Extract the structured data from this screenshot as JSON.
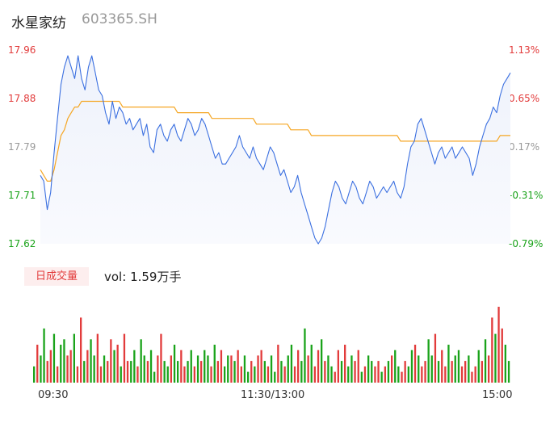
{
  "header": {
    "name": "水星家纺",
    "code": "603365.SH"
  },
  "volume_badge": "日成交量",
  "volume_label": "vol:",
  "volume_value": "1.59万手",
  "colors": {
    "up": "#e23b3b",
    "down": "#1aa31a",
    "neutral": "#999999",
    "price_line": "#3a6fe0",
    "avg_line": "#f5a623"
  },
  "chart_data": [
    {
      "type": "line",
      "title": "",
      "y_ticks": [
        "17.96",
        "17.88",
        "17.79",
        "17.71",
        "17.62"
      ],
      "y_tick_values": [
        17.96,
        17.88,
        17.79,
        17.71,
        17.62
      ],
      "pct_ticks": [
        "1.13%",
        "0.65%",
        "0.17%",
        "-0.31%",
        "-0.79%"
      ],
      "x_ticks": [
        "09:30",
        "11:30/13:00",
        "15:00"
      ],
      "ylim": [
        17.62,
        17.96
      ],
      "prev_close": 17.76,
      "series": [
        {
          "values": [
            17.74,
            17.73,
            17.68,
            17.71,
            17.78,
            17.84,
            17.9,
            17.93,
            17.95,
            17.93,
            17.91,
            17.95,
            17.91,
            17.89,
            17.93,
            17.95,
            17.92,
            17.89,
            17.88,
            17.85,
            17.83,
            17.87,
            17.84,
            17.86,
            17.85,
            17.83,
            17.84,
            17.82,
            17.83,
            17.84,
            17.81,
            17.83,
            17.79,
            17.78,
            17.82,
            17.83,
            17.81,
            17.8,
            17.82,
            17.83,
            17.81,
            17.8,
            17.82,
            17.84,
            17.83,
            17.81,
            17.82,
            17.84,
            17.83,
            17.81,
            17.79,
            17.77,
            17.78,
            17.76,
            17.76,
            17.77,
            17.78,
            17.79,
            17.81,
            17.79,
            17.78,
            17.77,
            17.79,
            17.77,
            17.76,
            17.75,
            17.77,
            17.79,
            17.78,
            17.76,
            17.74,
            17.75,
            17.73,
            17.71,
            17.72,
            17.74,
            17.71,
            17.69,
            17.67,
            17.65,
            17.63,
            17.62,
            17.63,
            17.65,
            17.68,
            17.71,
            17.73,
            17.72,
            17.7,
            17.69,
            17.71,
            17.73,
            17.72,
            17.7,
            17.69,
            17.71,
            17.73,
            17.72,
            17.7,
            17.71,
            17.72,
            17.71,
            17.72,
            17.73,
            17.71,
            17.7,
            17.72,
            17.76,
            17.79,
            17.8,
            17.83,
            17.84,
            17.82,
            17.8,
            17.78,
            17.76,
            17.78,
            17.79,
            17.77,
            17.78,
            17.79,
            17.77,
            17.78,
            17.79,
            17.78,
            17.77,
            17.74,
            17.76,
            17.79,
            17.81,
            17.83,
            17.84,
            17.86,
            17.85,
            17.88,
            17.9,
            17.91,
            17.92
          ]
        },
        {
          "values": [
            17.75,
            17.74,
            17.73,
            17.73,
            17.75,
            17.78,
            17.81,
            17.82,
            17.84,
            17.85,
            17.86,
            17.86,
            17.87,
            17.87,
            17.87,
            17.87,
            17.87,
            17.87,
            17.87,
            17.87,
            17.87,
            17.87,
            17.87,
            17.87,
            17.86,
            17.86,
            17.86,
            17.86,
            17.86,
            17.86,
            17.86,
            17.86,
            17.86,
            17.86,
            17.86,
            17.86,
            17.86,
            17.86,
            17.86,
            17.86,
            17.85,
            17.85,
            17.85,
            17.85,
            17.85,
            17.85,
            17.85,
            17.85,
            17.85,
            17.85,
            17.84,
            17.84,
            17.84,
            17.84,
            17.84,
            17.84,
            17.84,
            17.84,
            17.84,
            17.84,
            17.84,
            17.84,
            17.84,
            17.83,
            17.83,
            17.83,
            17.83,
            17.83,
            17.83,
            17.83,
            17.83,
            17.83,
            17.83,
            17.82,
            17.82,
            17.82,
            17.82,
            17.82,
            17.82,
            17.81,
            17.81,
            17.81,
            17.81,
            17.81,
            17.81,
            17.81,
            17.81,
            17.81,
            17.81,
            17.81,
            17.81,
            17.81,
            17.81,
            17.81,
            17.81,
            17.81,
            17.81,
            17.81,
            17.81,
            17.81,
            17.81,
            17.81,
            17.81,
            17.81,
            17.81,
            17.8,
            17.8,
            17.8,
            17.8,
            17.8,
            17.8,
            17.8,
            17.8,
            17.8,
            17.8,
            17.8,
            17.8,
            17.8,
            17.8,
            17.8,
            17.8,
            17.8,
            17.8,
            17.8,
            17.8,
            17.8,
            17.8,
            17.8,
            17.8,
            17.8,
            17.8,
            17.8,
            17.8,
            17.8,
            17.81,
            17.81,
            17.81,
            17.81
          ]
        }
      ]
    },
    {
      "type": "bar",
      "title": "",
      "values": [
        3,
        7,
        5,
        10,
        4,
        6,
        9,
        3,
        7,
        8,
        5,
        6,
        9,
        3,
        12,
        4,
        6,
        8,
        5,
        9,
        3,
        5,
        4,
        8,
        6,
        7,
        3,
        9,
        4,
        4,
        6,
        3,
        8,
        5,
        4,
        6,
        2,
        5,
        9,
        4,
        3,
        5,
        7,
        4,
        6,
        3,
        4,
        6,
        3,
        5,
        4,
        6,
        5,
        3,
        7,
        4,
        6,
        3,
        5,
        5,
        4,
        6,
        3,
        5,
        2,
        4,
        3,
        5,
        6,
        4,
        3,
        5,
        2,
        7,
        4,
        3,
        5,
        7,
        3,
        6,
        4,
        10,
        5,
        7,
        3,
        6,
        8,
        4,
        5,
        3,
        2,
        6,
        4,
        7,
        3,
        5,
        4,
        6,
        2,
        3,
        5,
        4,
        3,
        4,
        2,
        3,
        4,
        5,
        6,
        3,
        2,
        4,
        3,
        6,
        7,
        5,
        3,
        4,
        8,
        5,
        9,
        4,
        6,
        3,
        7,
        4,
        5,
        6,
        3,
        4,
        5,
        2,
        3,
        6,
        4,
        8,
        5,
        12,
        9,
        14,
        10,
        7,
        4
      ],
      "directions": [
        0,
        1,
        0,
        0,
        1,
        1,
        0,
        1,
        0,
        0,
        1,
        1,
        0,
        1,
        1,
        0,
        1,
        0,
        0,
        1,
        1,
        0,
        1,
        1,
        0,
        1,
        0,
        1,
        1,
        0,
        0,
        1,
        0,
        0,
        1,
        0,
        0,
        1,
        1,
        0,
        0,
        1,
        0,
        0,
        1,
        1,
        0,
        0,
        1,
        0,
        1,
        0,
        0,
        1,
        0,
        1,
        1,
        0,
        0,
        1,
        0,
        1,
        1,
        0,
        0,
        1,
        0,
        1,
        1,
        0,
        1,
        0,
        0,
        1,
        0,
        1,
        0,
        0,
        1,
        1,
        0,
        0,
        1,
        0,
        1,
        1,
        0,
        1,
        0,
        0,
        1,
        1,
        0,
        1,
        0,
        0,
        1,
        1,
        0,
        1,
        0,
        0,
        1,
        1,
        0,
        1,
        0,
        1,
        0,
        0,
        1,
        1,
        0,
        0,
        1,
        0,
        1,
        1,
        0,
        0,
        1,
        0,
        1,
        1,
        0,
        1,
        0,
        0,
        1,
        1,
        0,
        1,
        1,
        0,
        1,
        0,
        1,
        1,
        0,
        1,
        1,
        0,
        0
      ]
    }
  ]
}
